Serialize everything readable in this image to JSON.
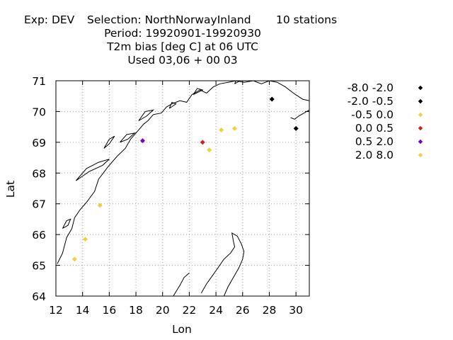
{
  "header": {
    "line1_left": "Exp: DEV",
    "line1_mid": "Selection: NorthNorwayInland",
    "line1_right": "10 stations",
    "line2": "Period: 19920901-19920930",
    "line3": "T2m bias [deg C] at  06 UTC",
    "line4": "Used  03,06  + 00 03"
  },
  "chart_data": {
    "type": "scatter",
    "xlabel": "Lon",
    "ylabel": "Lat",
    "xlim": [
      12,
      31
    ],
    "ylim": [
      64,
      71
    ],
    "x_ticks": [
      12,
      14,
      16,
      18,
      20,
      22,
      24,
      26,
      28,
      30
    ],
    "y_ticks": [
      64,
      65,
      66,
      67,
      68,
      69,
      70,
      71
    ],
    "grid": true,
    "legend_position": "right",
    "legend": [
      {
        "label": "-8.0 -2.0",
        "color": "#000000"
      },
      {
        "label": "-2.0 -0.5",
        "color": "#000000"
      },
      {
        "label": "-0.5 0.0",
        "color": "#f0d040"
      },
      {
        "label": "0.0 0.5",
        "color": "#d02020"
      },
      {
        "label": "0.5 2.0",
        "color": "#8000c0"
      },
      {
        "label": "2.0 8.0",
        "color": "#f0d040"
      }
    ],
    "points": [
      {
        "lon": 13.4,
        "lat": 65.2,
        "bin": 2,
        "color": "#f0d040"
      },
      {
        "lon": 14.2,
        "lat": 65.85,
        "bin": 2,
        "color": "#f0d040"
      },
      {
        "lon": 15.3,
        "lat": 66.95,
        "bin": 2,
        "color": "#f0d040"
      },
      {
        "lon": 18.5,
        "lat": 69.05,
        "bin": 4,
        "color": "#8000c0"
      },
      {
        "lon": 23.0,
        "lat": 69.0,
        "bin": 3,
        "color": "#d02020"
      },
      {
        "lon": 23.5,
        "lat": 68.75,
        "bin": 2,
        "color": "#f0d040"
      },
      {
        "lon": 24.4,
        "lat": 69.4,
        "bin": 2,
        "color": "#f0d040"
      },
      {
        "lon": 25.4,
        "lat": 69.45,
        "bin": 2,
        "color": "#f0d040"
      },
      {
        "lon": 28.2,
        "lat": 70.4,
        "bin": 1,
        "color": "#000000"
      },
      {
        "lon": 30.0,
        "lat": 69.45,
        "bin": 1,
        "color": "#000000"
      }
    ],
    "coastlines": [
      [
        [
          12.1,
          65.05
        ],
        [
          12.5,
          65.4
        ],
        [
          12.8,
          65.9
        ],
        [
          13.2,
          66.2
        ],
        [
          13.4,
          66.55
        ],
        [
          13.8,
          66.8
        ],
        [
          14.3,
          67.05
        ],
        [
          14.9,
          67.4
        ],
        [
          15.2,
          67.8
        ],
        [
          15.9,
          68.2
        ],
        [
          16.6,
          68.55
        ],
        [
          17.2,
          68.8
        ],
        [
          17.6,
          69.1
        ],
        [
          18.1,
          69.35
        ],
        [
          18.6,
          69.6
        ],
        [
          18.9,
          69.7
        ],
        [
          19.3,
          69.9
        ],
        [
          19.9,
          69.95
        ],
        [
          20.3,
          70.15
        ],
        [
          20.7,
          70.25
        ],
        [
          21.3,
          70.35
        ],
        [
          21.8,
          70.3
        ],
        [
          22.2,
          70.55
        ],
        [
          22.8,
          70.7
        ],
        [
          23.3,
          70.6
        ],
        [
          23.8,
          70.8
        ],
        [
          24.3,
          70.9
        ],
        [
          24.9,
          70.95
        ],
        [
          25.5,
          71.0
        ],
        [
          26.1,
          70.95
        ],
        [
          26.8,
          71.0
        ],
        [
          27.4,
          70.9
        ],
        [
          28.0,
          71.0
        ],
        [
          28.6,
          70.95
        ],
        [
          29.2,
          70.8
        ],
        [
          29.8,
          70.6
        ],
        [
          30.5,
          70.4
        ],
        [
          31.0,
          70.35
        ]
      ],
      [
        [
          31.0,
          70.05
        ],
        [
          30.6,
          69.95
        ],
        [
          30.2,
          69.85
        ],
        [
          29.9,
          69.75
        ],
        [
          29.6,
          69.8
        ]
      ],
      [
        [
          12.5,
          66.2
        ],
        [
          12.9,
          66.3
        ],
        [
          13.1,
          66.5
        ],
        [
          12.8,
          66.45
        ],
        [
          12.5,
          66.2
        ]
      ],
      [
        [
          13.5,
          67.75
        ],
        [
          14.5,
          68.05
        ],
        [
          15.5,
          68.25
        ],
        [
          16.0,
          68.45
        ],
        [
          15.2,
          68.35
        ],
        [
          14.3,
          68.15
        ],
        [
          13.5,
          67.75
        ]
      ],
      [
        [
          15.6,
          68.8
        ],
        [
          16.0,
          69.1
        ],
        [
          16.4,
          69.2
        ],
        [
          16.0,
          68.95
        ],
        [
          15.6,
          68.8
        ]
      ],
      [
        [
          16.8,
          69.0
        ],
        [
          17.4,
          69.1
        ],
        [
          17.9,
          69.3
        ],
        [
          17.3,
          69.25
        ],
        [
          16.8,
          69.0
        ]
      ],
      [
        [
          18.2,
          69.7
        ],
        [
          18.8,
          69.85
        ],
        [
          19.3,
          70.05
        ],
        [
          18.7,
          70.0
        ],
        [
          18.2,
          69.7
        ]
      ],
      [
        [
          20.5,
          70.1
        ],
        [
          21.0,
          70.25
        ],
        [
          20.7,
          70.3
        ],
        [
          20.5,
          70.1
        ]
      ],
      [
        [
          22.3,
          70.55
        ],
        [
          23.0,
          70.7
        ],
        [
          22.6,
          70.75
        ],
        [
          22.3,
          70.55
        ]
      ],
      [
        [
          25.4,
          70.9
        ],
        [
          26.0,
          71.05
        ],
        [
          25.6,
          71.1
        ],
        [
          25.4,
          70.9
        ]
      ],
      [
        [
          22.9,
          64.1
        ],
        [
          23.3,
          64.4
        ],
        [
          23.8,
          64.7
        ],
        [
          24.2,
          64.95
        ],
        [
          24.6,
          65.2
        ],
        [
          25.1,
          65.4
        ],
        [
          25.4,
          65.6
        ],
        [
          25.3,
          65.8
        ],
        [
          25.2,
          66.05
        ],
        [
          25.6,
          65.95
        ],
        [
          25.9,
          65.7
        ],
        [
          26.1,
          65.45
        ],
        [
          26.0,
          65.2
        ],
        [
          25.7,
          64.9
        ],
        [
          25.3,
          64.6
        ],
        [
          24.9,
          64.3
        ],
        [
          24.6,
          64.0
        ]
      ],
      [
        [
          20.8,
          64.0
        ],
        [
          21.3,
          64.35
        ],
        [
          21.6,
          64.6
        ],
        [
          22.0,
          64.75
        ]
      ]
    ]
  }
}
